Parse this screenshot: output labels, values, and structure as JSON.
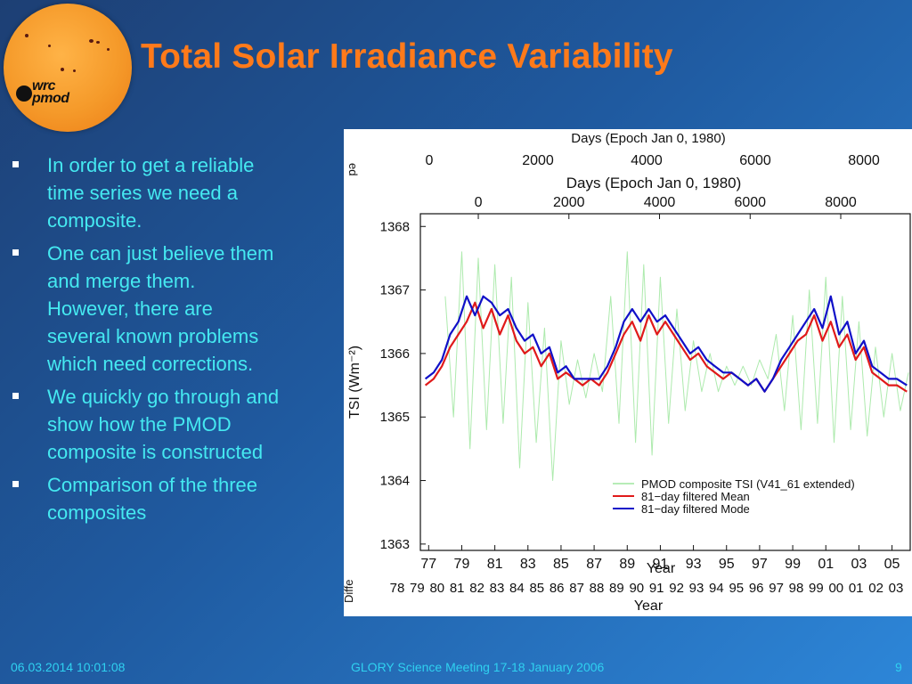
{
  "logo": {
    "line1": "wrc",
    "line2": "pmod"
  },
  "slide": {
    "title": "Total Solar Irradiance Variability",
    "bullets": [
      "In order to get a reliable time series we need a composite.",
      "One can just believe them and merge them. However, there are several known problems which need corrections.",
      "We quickly go through and show how the PMOD composite is constructed",
      "Comparison of the three composites"
    ]
  },
  "footer": {
    "date": "06.03.2014 10:01:08",
    "event": "GLORY Science Meeting 17-18 January 2006",
    "page": "9"
  },
  "colors": {
    "title": "#ff7a1a",
    "bullet_text": "#45e9f1",
    "footer_text": "#2fd1f0",
    "composite": "#9fe69f",
    "mean": "#e01a1a",
    "mode": "#1010c8"
  },
  "chart_data": {
    "type": "line",
    "x2label_behind": "Days (Epoch Jan 0, 1980)",
    "x2ticks_behind": [
      "0",
      "2000",
      "4000",
      "6000",
      "8000"
    ],
    "left_edge_fragments": [
      "ed",
      "Diffe"
    ],
    "x2label": "Days (Epoch Jan 0, 1980)",
    "x2ticks": [
      "0",
      "2000",
      "4000",
      "6000",
      "8000"
    ],
    "xlabel": "Year",
    "xticks": [
      "77",
      "79",
      "81",
      "83",
      "85",
      "87",
      "89",
      "91",
      "93",
      "95",
      "97",
      "99",
      "01",
      "03",
      "05"
    ],
    "ylabel": "TSI (Wm⁻²)",
    "yticks": [
      "1368",
      "1367",
      "1366",
      "1365",
      "1364",
      "1363"
    ],
    "ylim": [
      1362.9,
      1368.2
    ],
    "xlim": [
      1976.5,
      2006.1
    ],
    "bottom_xlabel": "Year",
    "bottom_xticks": [
      "78",
      "79",
      "80",
      "81",
      "82",
      "83",
      "84",
      "85",
      "86",
      "87",
      "88",
      "89",
      "90",
      "91",
      "92",
      "93",
      "94",
      "95",
      "96",
      "97",
      "98",
      "99",
      "00",
      "01",
      "02",
      "03"
    ],
    "series": [
      {
        "name": "PMOD composite TSI (V41_61 extended)",
        "color": "#9fe69f",
        "x": [
          1978.0,
          1978.5,
          1979.0,
          1979.5,
          1980.0,
          1980.5,
          1981.0,
          1981.5,
          1982.0,
          1982.5,
          1983.0,
          1983.5,
          1984.0,
          1984.5,
          1985.0,
          1985.5,
          1986.0,
          1986.5,
          1987.0,
          1987.5,
          1988.0,
          1988.5,
          1989.0,
          1989.5,
          1990.0,
          1990.5,
          1991.0,
          1991.5,
          1992.0,
          1992.5,
          1993.0,
          1993.5,
          1994.0,
          1994.5,
          1995.0,
          1995.5,
          1996.0,
          1996.5,
          1997.0,
          1997.5,
          1998.0,
          1998.5,
          1999.0,
          1999.5,
          2000.0,
          2000.5,
          2001.0,
          2001.5,
          2002.0,
          2002.5,
          2003.0,
          2003.5,
          2004.0,
          2004.5,
          2005.0,
          2005.5,
          2006.0
        ],
        "values": [
          1366.9,
          1365.0,
          1367.6,
          1364.5,
          1367.5,
          1364.8,
          1367.4,
          1364.9,
          1367.2,
          1364.2,
          1366.8,
          1364.6,
          1366.4,
          1364.0,
          1366.2,
          1365.2,
          1365.9,
          1365.3,
          1366.0,
          1365.4,
          1366.9,
          1364.9,
          1367.6,
          1364.6,
          1367.4,
          1364.4,
          1367.2,
          1364.9,
          1366.7,
          1365.1,
          1366.2,
          1365.4,
          1366.0,
          1365.4,
          1365.8,
          1365.5,
          1365.8,
          1365.5,
          1365.9,
          1365.6,
          1366.3,
          1365.1,
          1366.6,
          1364.8,
          1367.0,
          1364.9,
          1367.2,
          1364.6,
          1366.9,
          1364.8,
          1366.5,
          1364.7,
          1366.1,
          1365.0,
          1366.0,
          1365.1,
          1365.7
        ]
      },
      {
        "name": "81−day filtered Mean",
        "color": "#e01a1a",
        "x": [
          1976.8,
          1977.3,
          1977.8,
          1978.3,
          1978.8,
          1979.3,
          1979.8,
          1980.3,
          1980.8,
          1981.3,
          1981.8,
          1982.3,
          1982.8,
          1983.3,
          1983.8,
          1984.3,
          1984.8,
          1985.3,
          1985.8,
          1986.3,
          1986.8,
          1987.3,
          1987.8,
          1988.3,
          1988.8,
          1989.3,
          1989.8,
          1990.3,
          1990.8,
          1991.3,
          1991.8,
          1992.3,
          1992.8,
          1993.3,
          1993.8,
          1994.3,
          1994.8,
          1995.3,
          1995.8,
          1996.3,
          1996.8,
          1997.3,
          1997.8,
          1998.3,
          1998.8,
          1999.3,
          1999.8,
          2000.3,
          2000.8,
          2001.3,
          2001.8,
          2002.3,
          2002.8,
          2003.3,
          2003.8,
          2004.3,
          2004.8,
          2005.3,
          2005.9
        ],
        "values": [
          1365.5,
          1365.6,
          1365.8,
          1366.1,
          1366.3,
          1366.5,
          1366.8,
          1366.4,
          1366.7,
          1366.3,
          1366.6,
          1366.2,
          1366.0,
          1366.1,
          1365.8,
          1366.0,
          1365.6,
          1365.7,
          1365.6,
          1365.5,
          1365.6,
          1365.5,
          1365.7,
          1366.0,
          1366.3,
          1366.5,
          1366.2,
          1366.6,
          1366.3,
          1366.5,
          1366.3,
          1366.1,
          1365.9,
          1366.0,
          1365.8,
          1365.7,
          1365.6,
          1365.7,
          1365.6,
          1365.5,
          1365.6,
          1365.4,
          1365.6,
          1365.8,
          1366.0,
          1366.2,
          1366.3,
          1366.6,
          1366.2,
          1366.5,
          1366.1,
          1366.3,
          1365.9,
          1366.1,
          1365.7,
          1365.6,
          1365.5,
          1365.5,
          1365.4
        ]
      },
      {
        "name": "81−day filtered Mode",
        "color": "#1010c8",
        "x": [
          1976.8,
          1977.3,
          1977.8,
          1978.3,
          1978.8,
          1979.3,
          1979.8,
          1980.3,
          1980.8,
          1981.3,
          1981.8,
          1982.3,
          1982.8,
          1983.3,
          1983.8,
          1984.3,
          1984.8,
          1985.3,
          1985.8,
          1986.3,
          1986.8,
          1987.3,
          1987.8,
          1988.3,
          1988.8,
          1989.3,
          1989.8,
          1990.3,
          1990.8,
          1991.3,
          1991.8,
          1992.3,
          1992.8,
          1993.3,
          1993.8,
          1994.3,
          1994.8,
          1995.3,
          1995.8,
          1996.3,
          1996.8,
          1997.3,
          1997.8,
          1998.3,
          1998.8,
          1999.3,
          1999.8,
          2000.3,
          2000.8,
          2001.3,
          2001.8,
          2002.3,
          2002.8,
          2003.3,
          2003.8,
          2004.3,
          2004.8,
          2005.3,
          2005.9
        ],
        "values": [
          1365.6,
          1365.7,
          1365.9,
          1366.3,
          1366.5,
          1366.9,
          1366.6,
          1366.9,
          1366.8,
          1366.6,
          1366.7,
          1366.4,
          1366.2,
          1366.3,
          1366.0,
          1366.1,
          1365.7,
          1365.8,
          1365.6,
          1365.6,
          1365.6,
          1365.6,
          1365.8,
          1366.1,
          1366.5,
          1366.7,
          1366.5,
          1366.7,
          1366.5,
          1366.6,
          1366.4,
          1366.2,
          1366.0,
          1366.1,
          1365.9,
          1365.8,
          1365.7,
          1365.7,
          1365.6,
          1365.5,
          1365.6,
          1365.4,
          1365.6,
          1365.9,
          1366.1,
          1366.3,
          1366.5,
          1366.7,
          1366.4,
          1366.9,
          1366.3,
          1366.5,
          1366.0,
          1366.2,
          1365.8,
          1365.7,
          1365.6,
          1365.6,
          1365.5
        ]
      }
    ]
  }
}
